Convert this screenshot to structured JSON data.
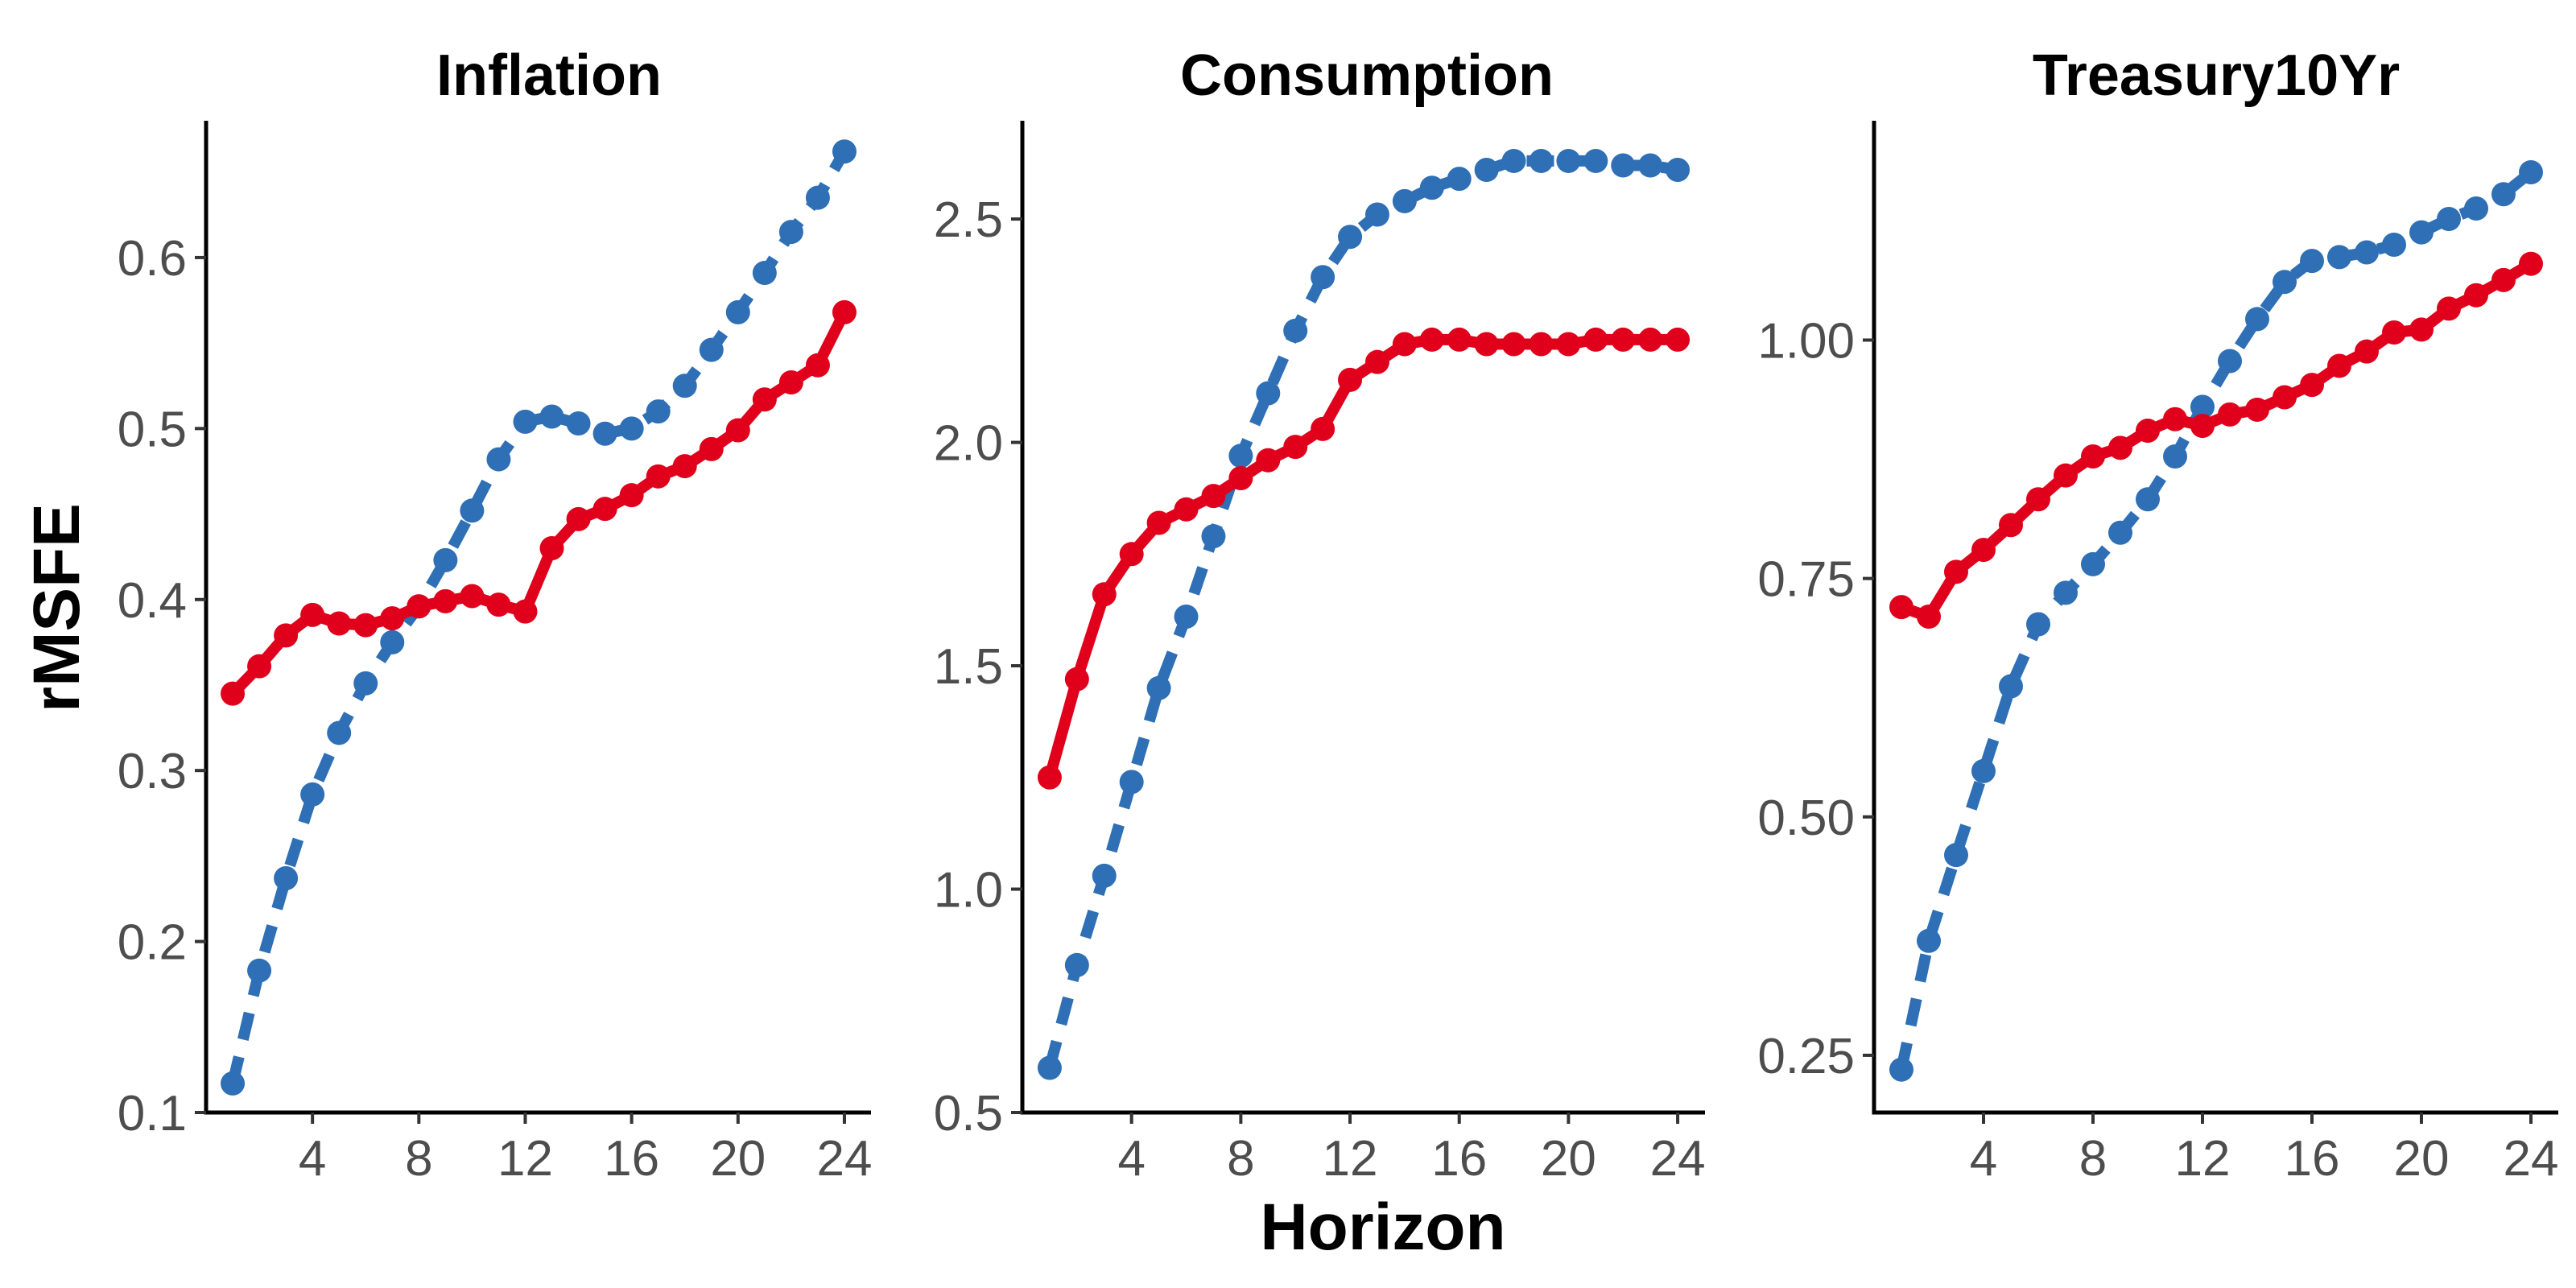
{
  "chart_data": {
    "type": "line",
    "xlabel": "Horizon",
    "ylabel": "rMSFE",
    "x": [
      1,
      2,
      3,
      4,
      5,
      6,
      7,
      8,
      9,
      10,
      11,
      12,
      13,
      14,
      15,
      16,
      17,
      18,
      19,
      20,
      21,
      22,
      23,
      24
    ],
    "xticks": [
      4,
      8,
      12,
      16,
      20,
      24
    ],
    "xlim": [
      0,
      25
    ],
    "series_styles": [
      {
        "color": "#2e6fb5",
        "line": "dashed"
      },
      {
        "color": "#e0001b",
        "line": "solid"
      }
    ],
    "panels": [
      {
        "title": "Inflation",
        "ylim": [
          0.1,
          0.68
        ],
        "yticks": [
          0.1,
          0.2,
          0.3,
          0.4,
          0.5,
          0.6
        ],
        "ytick_labels": [
          "0.1",
          "0.2",
          "0.3",
          "0.4",
          "0.5",
          "0.6"
        ],
        "series": [
          {
            "values": [
              0.117,
              0.183,
              0.237,
              0.286,
              0.322,
              0.351,
              0.375,
              0.396,
              0.423,
              0.452,
              0.482,
              0.504,
              0.507,
              0.503,
              0.497,
              0.5,
              0.51,
              0.525,
              0.546,
              0.568,
              0.591,
              0.615,
              0.635,
              0.662
            ]
          },
          {
            "values": [
              0.345,
              0.361,
              0.379,
              0.391,
              0.386,
              0.385,
              0.389,
              0.396,
              0.399,
              0.402,
              0.397,
              0.393,
              0.43,
              0.447,
              0.453,
              0.461,
              0.472,
              0.478,
              0.488,
              0.499,
              0.517,
              0.527,
              0.537,
              0.568
            ]
          }
        ]
      },
      {
        "title": "Consumption",
        "ylim": [
          0.5,
          2.72
        ],
        "yticks": [
          0.5,
          1.0,
          1.5,
          2.0,
          2.5
        ],
        "ytick_labels": [
          "0.5",
          "1.0",
          "1.5",
          "2.0",
          "2.5"
        ],
        "series": [
          {
            "values": [
              0.6,
              0.83,
              1.03,
              1.24,
              1.45,
              1.61,
              1.79,
              1.97,
              2.11,
              2.25,
              2.37,
              2.46,
              2.51,
              2.54,
              2.57,
              2.59,
              2.61,
              2.63,
              2.63,
              2.63,
              2.63,
              2.62,
              2.62,
              2.61
            ]
          },
          {
            "values": [
              1.25,
              1.47,
              1.66,
              1.75,
              1.82,
              1.85,
              1.88,
              1.92,
              1.96,
              1.99,
              2.03,
              2.14,
              2.18,
              2.22,
              2.23,
              2.23,
              2.22,
              2.22,
              2.22,
              2.22,
              2.23,
              2.23,
              2.23,
              2.23
            ]
          }
        ]
      },
      {
        "title": "Treasury10Yr",
        "ylim": [
          0.19,
          1.23
        ],
        "yticks": [
          0.25,
          0.5,
          0.75,
          1.0
        ],
        "ytick_labels": [
          "0.25",
          "0.50",
          "0.75",
          "1.00"
        ],
        "series": [
          {
            "values": [
              0.235,
              0.37,
              0.46,
              0.548,
              0.637,
              0.702,
              0.735,
              0.765,
              0.798,
              0.833,
              0.878,
              0.93,
              0.978,
              1.022,
              1.061,
              1.083,
              1.087,
              1.092,
              1.1,
              1.113,
              1.127,
              1.138,
              1.153,
              1.176
            ]
          },
          {
            "values": [
              0.72,
              0.71,
              0.757,
              0.78,
              0.806,
              0.833,
              0.858,
              0.878,
              0.887,
              0.905,
              0.917,
              0.91,
              0.922,
              0.927,
              0.94,
              0.953,
              0.973,
              0.988,
              1.008,
              1.011,
              1.033,
              1.047,
              1.063,
              1.08
            ]
          }
        ]
      }
    ]
  }
}
